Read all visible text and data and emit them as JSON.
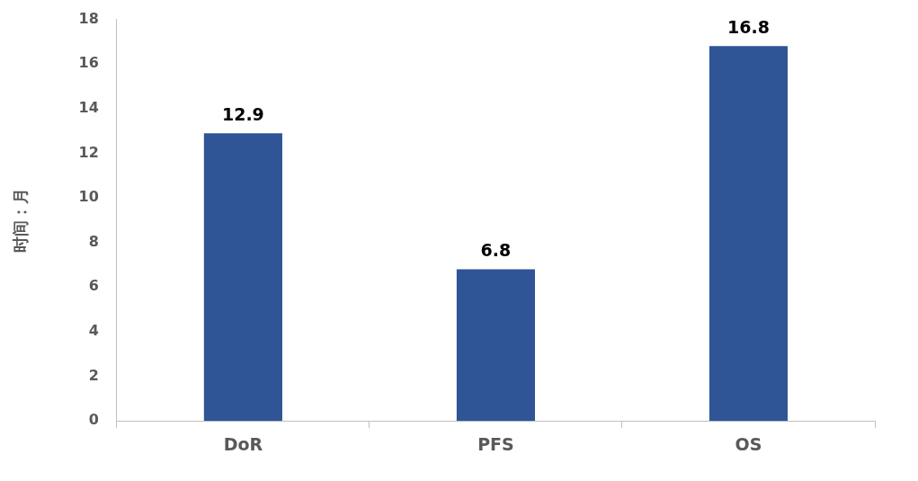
{
  "chart_data": {
    "type": "bar",
    "ylabel": "时间：月",
    "categories": [
      "DoR",
      "PFS",
      "OS"
    ],
    "values": [
      12.9,
      6.8,
      16.8
    ],
    "color": "#2f5597",
    "ylim": [
      0,
      18
    ],
    "yticks": [
      0,
      2,
      4,
      6,
      8,
      10,
      12,
      14,
      16,
      18
    ],
    "data_labels": true
  }
}
